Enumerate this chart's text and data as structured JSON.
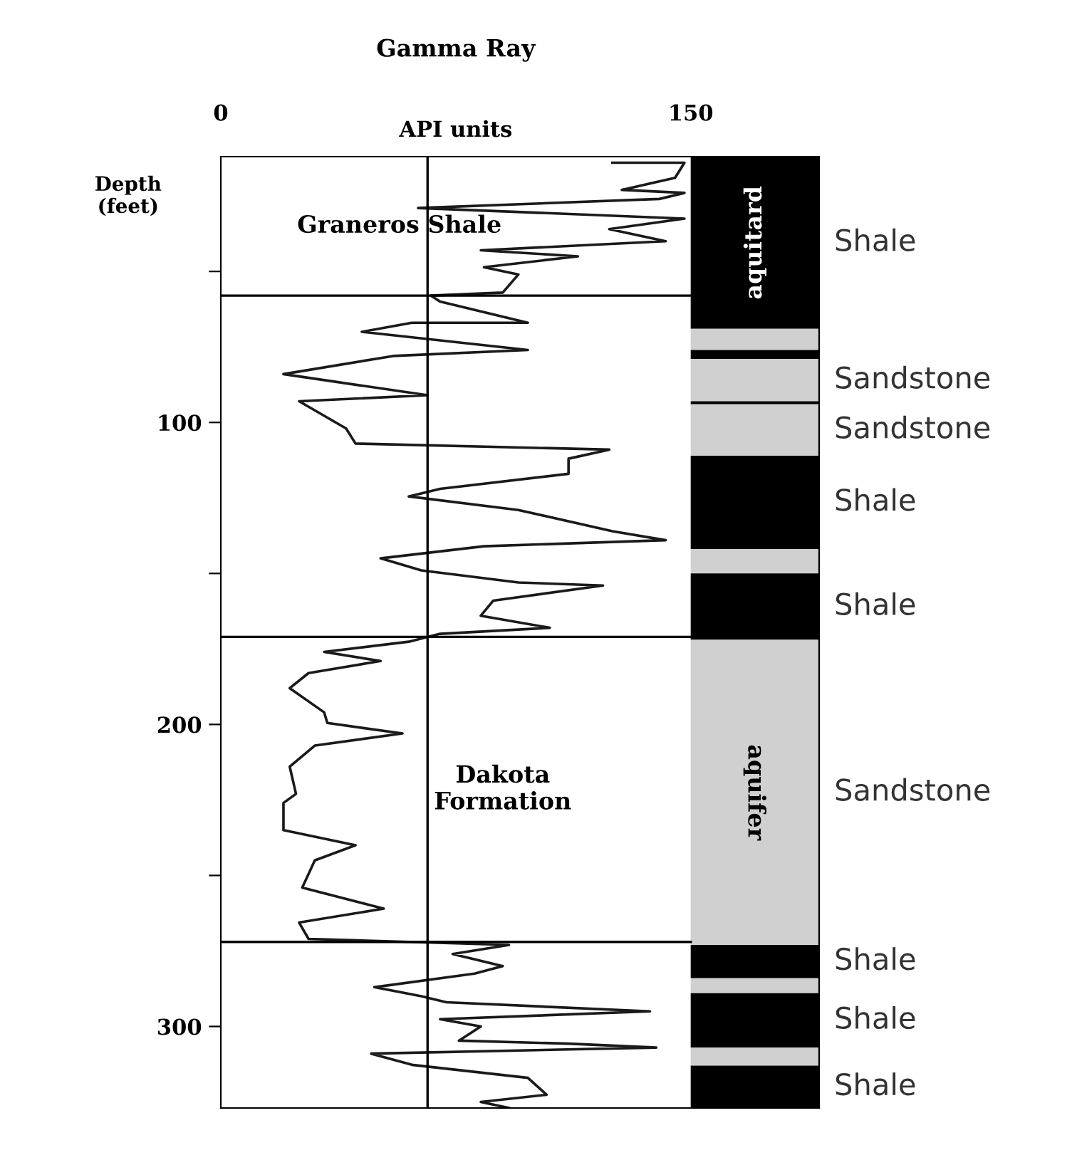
{
  "chart_data": {
    "type": "line",
    "title": "Gamma Ray",
    "xlabel": "API units",
    "ylabel": "Depth\n(feet)",
    "xlim": [
      0,
      191
    ],
    "xticks": [
      0,
      150
    ],
    "ylim": [
      327,
      12
    ],
    "yticks": [
      {
        "value": 50,
        "label": null
      },
      100,
      {
        "value": 150,
        "label": null
      },
      200,
      {
        "value": 250,
        "label": null
      },
      300
    ],
    "series": [
      {
        "color": "#1a1a1a",
        "x": [
          125,
          148,
          145,
          128,
          148,
          140,
          63,
          148,
          124,
          142,
          83,
          114,
          84,
          95,
          90,
          67,
          70,
          98,
          61,
          45,
          98,
          55,
          20,
          66,
          25,
          40,
          43,
          124,
          111,
          111,
          70,
          60,
          95,
          125,
          142,
          84,
          51,
          64,
          95,
          122,
          87,
          83,
          105,
          70,
          60,
          33,
          51,
          28,
          22,
          33,
          34,
          58,
          30,
          22,
          24,
          20,
          20,
          43,
          30,
          26,
          52,
          25,
          28,
          92,
          74,
          90,
          81,
          49,
          64,
          72,
          137,
          70,
          83,
          76,
          111,
          139,
          48,
          61,
          98,
          104,
          83,
          92
        ],
        "values": [
          14,
          14,
          19,
          23,
          24,
          26,
          29,
          32.5,
          36,
          40,
          43,
          45,
          48.6,
          51,
          57,
          58,
          60,
          67,
          67,
          70,
          76,
          78,
          84,
          91,
          93,
          102,
          107,
          109,
          112,
          117,
          122,
          124.5,
          129,
          136,
          139,
          141,
          145,
          149,
          153,
          154,
          159,
          164,
          168,
          170,
          172.6,
          176,
          179,
          183,
          188,
          196,
          199.5,
          203,
          207,
          214,
          223,
          226,
          235,
          240,
          245,
          254,
          261,
          265.6,
          271,
          273,
          276,
          280,
          282.5,
          287,
          290,
          292,
          295,
          297.6,
          300,
          304.7,
          305.7,
          307,
          309,
          312.7,
          317,
          322.6,
          325,
          327
        ]
      }
    ],
    "ref_lines": [
      {
        "axis": "y",
        "value": 58,
        "color": "#000000"
      },
      {
        "axis": "y",
        "value": 171,
        "color": "#000000"
      },
      {
        "axis": "y",
        "value": 272,
        "color": "#000000"
      },
      {
        "axis": "x",
        "value": 66,
        "color": "#000000"
      }
    ],
    "bands": [
      {
        "axis": "y",
        "from": 12,
        "to": 69,
        "color": "#000000",
        "label": "Shale"
      },
      {
        "axis": "y",
        "from": 69,
        "to": 76,
        "color": "#d0d0d0"
      },
      {
        "axis": "y",
        "from": 76,
        "to": 79,
        "color": "#000000"
      },
      {
        "axis": "y",
        "from": 79,
        "to": 93,
        "color": "#d0d0d0",
        "label": "Sandstone"
      },
      {
        "axis": "y",
        "from": 93,
        "to": 94,
        "color": "#000000"
      },
      {
        "axis": "y",
        "from": 94,
        "to": 111,
        "color": "#d0d0d0",
        "label": "Sandstone"
      },
      {
        "axis": "y",
        "from": 111,
        "to": 142,
        "color": "#000000",
        "label": "Shale"
      },
      {
        "axis": "y",
        "from": 142,
        "to": 150,
        "color": "#d0d0d0"
      },
      {
        "axis": "y",
        "from": 150,
        "to": 172,
        "color": "#000000",
        "label": "Shale"
      },
      {
        "axis": "y",
        "from": 172,
        "to": 273,
        "color": "#d0d0d0",
        "label": "Sandstone"
      },
      {
        "axis": "y",
        "from": 273,
        "to": 284,
        "color": "#000000",
        "label": "Shale"
      },
      {
        "axis": "y",
        "from": 284,
        "to": 289,
        "color": "#d0d0d0"
      },
      {
        "axis": "y",
        "from": 289,
        "to": 307,
        "color": "#000000",
        "label": "Shale"
      },
      {
        "axis": "y",
        "from": 307,
        "to": 313,
        "color": "#d0d0d0"
      },
      {
        "axis": "y",
        "from": 313,
        "to": 327,
        "color": "#000000",
        "label": "Shale"
      }
    ],
    "annotations": [
      "Graneros Shale",
      "Dakota\nFormation",
      "aquitard",
      "aquifer"
    ]
  }
}
